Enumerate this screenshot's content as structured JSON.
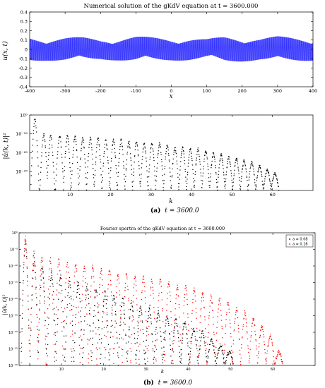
{
  "chart_data": [
    {
      "type": "area",
      "title": "Numerical solution of the gKdV equation at  t = 3600.000",
      "xlabel": "x",
      "ylabel": "u(x, t)",
      "xlim": [
        -400,
        400
      ],
      "ylim": [
        -0.4,
        0.4
      ],
      "xticks": [
        "-400",
        "-300",
        "-200",
        "-100",
        "0",
        "100",
        "200",
        "300",
        "400"
      ],
      "yticks": [
        "0.4",
        "0.3",
        "0.2",
        "0.1",
        "0",
        "-0.1",
        "-0.2",
        "-0.3",
        "-0.4"
      ],
      "series": [
        {
          "color": "#0000ff",
          "envelope": {
            "x": [
              -400,
              -350,
              -300,
              -250,
              -200,
              -150,
              -100,
              -50,
              0,
              50,
              100,
              150,
              200,
              250,
              300,
              350,
              400
            ],
            "amplitude": [
              0.13,
              0.12,
              0.13,
              0.13,
              0.11,
              0.12,
              0.14,
              0.13,
              0.12,
              0.12,
              0.11,
              0.14,
              0.13,
              0.12,
              0.14,
              0.13,
              0.12
            ]
          }
        }
      ],
      "caption": {
        "letter": "(a)",
        "text": "t = 3600.0"
      }
    },
    {
      "type": "scatter",
      "xlabel": "k",
      "ylabel": "|û(k, t)|²",
      "xlim": [
        0,
        70
      ],
      "yscale": "log",
      "ylim_exp": [
        -40,
        0
      ],
      "xticks": [
        "10",
        "20",
        "30",
        "40",
        "50",
        "60"
      ],
      "yticks": [
        "10⁰",
        "10⁻¹⁰",
        "10⁻²⁰",
        "10⁻³⁰"
      ],
      "series": [
        {
          "color": "#000000",
          "peaks_k": [
            1.3,
            3.5,
            5.2,
            7.4,
            9.3,
            11.2,
            13.1,
            15.0,
            16.9,
            18.8,
            20.7,
            22.6,
            24.5,
            26.4,
            28.3,
            30.2,
            32.1,
            34.0,
            35.9,
            37.8,
            39.7,
            41.6,
            43.5,
            45.4,
            47.3,
            49.2,
            51.1,
            53.0,
            54.9,
            56.8,
            58.7,
            60.6
          ],
          "peaks_exp": [
            -2,
            -10,
            -11,
            -11,
            -11,
            -11,
            -12,
            -12,
            -12,
            -13,
            -13,
            -13,
            -14,
            -14,
            -15,
            -15,
            -15,
            -16,
            -17,
            -17,
            -18,
            -18,
            -19,
            -20,
            -21,
            -22,
            -23,
            -24,
            -25,
            -27,
            -29,
            -31
          ],
          "floor_exp": -40
        }
      ]
    },
    {
      "type": "scatter",
      "title": "Fourier spertra of the gKdV equation at  t = 3600.000",
      "xlabel": "k",
      "ylabel": "|û(k, t)|²",
      "xlim": [
        0,
        70
      ],
      "yscale": "log",
      "ylim_exp": [
        -40,
        0
      ],
      "xticks": [
        "10",
        "20",
        "30",
        "40",
        "50",
        "60"
      ],
      "yticks": [
        "10⁰",
        "10⁻⁵",
        "10⁻¹⁰",
        "10⁻¹⁵",
        "10⁻²⁰",
        "10⁻²⁵",
        "10⁻³⁰",
        "10⁻³⁵",
        "10⁻⁴⁰"
      ],
      "legend": {
        "position": "top-right",
        "entries": [
          "a = 0.08",
          "a = 0.16"
        ]
      },
      "series": [
        {
          "name": "a = 0.08",
          "color": "#000000",
          "peaks_k": [
            1.5,
            3.6,
            5.5,
            7.7,
            9.8,
            11.9,
            14.0,
            16.1,
            18.2,
            20.3,
            22.4,
            24.5,
            26.6,
            28.7,
            30.8,
            32.9,
            35.0,
            37.1,
            39.2,
            41.3,
            43.4,
            45.5,
            47.6,
            49.7
          ],
          "peaks_exp": [
            -3,
            -8,
            -10,
            -12,
            -13,
            -14,
            -15,
            -16,
            -17,
            -18,
            -19,
            -20,
            -21,
            -22,
            -23,
            -24,
            -25,
            -26,
            -27,
            -29,
            -30,
            -32,
            -34,
            -36
          ],
          "floor_exp": -40
        },
        {
          "name": "a = 0.16",
          "color": "#ff0000",
          "peaks_k": [
            1.5,
            3.5,
            5.4,
            7.4,
            9.4,
            11.4,
            13.4,
            15.4,
            17.4,
            19.4,
            21.4,
            23.4,
            25.4,
            27.4,
            29.4,
            31.4,
            33.4,
            35.4,
            37.4,
            39.4,
            41.4,
            43.4,
            45.4,
            47.4,
            49.4,
            51.4,
            53.4,
            55.4,
            57.4,
            59.4,
            61.4
          ],
          "peaks_exp": [
            -1,
            -6,
            -7,
            -8,
            -8,
            -9,
            -9,
            -10,
            -10,
            -11,
            -11,
            -12,
            -12,
            -13,
            -13,
            -14,
            -14,
            -15,
            -16,
            -16,
            -17,
            -18,
            -19,
            -20,
            -21,
            -23,
            -24,
            -26,
            -28,
            -31,
            -36
          ],
          "floor_exp": -40
        }
      ],
      "caption": {
        "letter": "(b)",
        "text": "t = 3600.0"
      }
    }
  ]
}
